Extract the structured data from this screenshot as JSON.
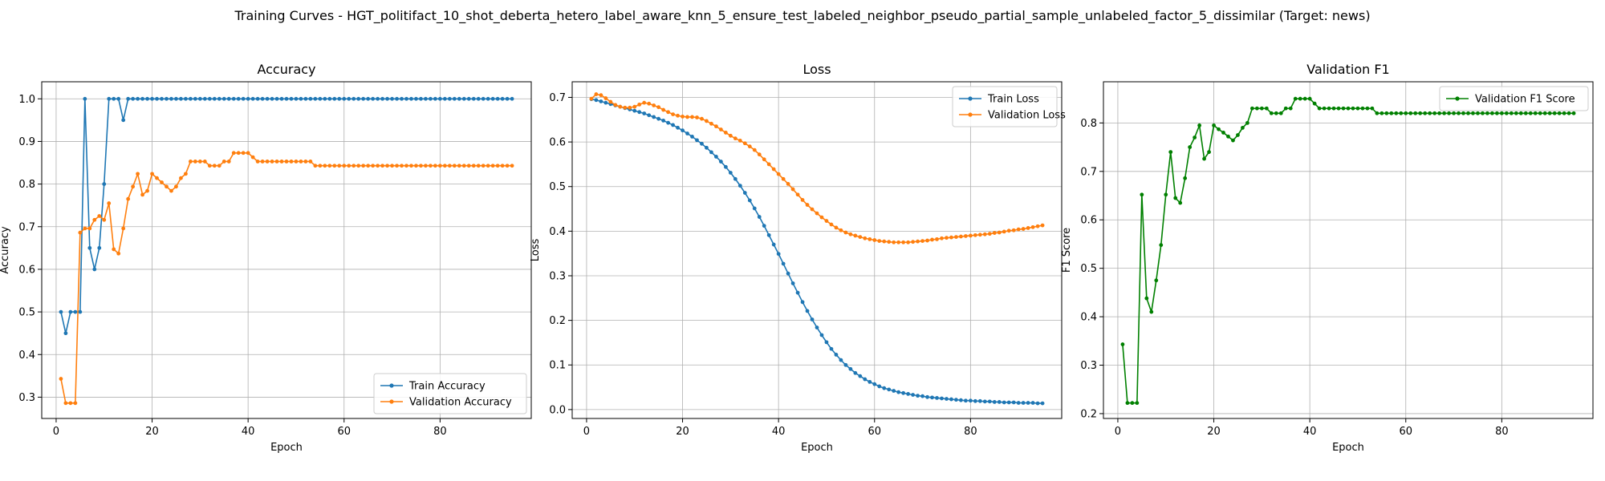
{
  "figure_title": "Training Curves - HGT_politifact_10_shot_deberta_hetero_label_aware_knn_5_ensure_test_labeled_neighbor_pseudo_partial_sample_unlabeled_factor_5_dissimilar (Target: news)",
  "chart_data": [
    {
      "type": "line",
      "title": "Accuracy",
      "xlabel": "Epoch",
      "ylabel": "Accuracy",
      "xlim": [
        -3,
        99
      ],
      "ylim": [
        0.25,
        1.04
      ],
      "xticks": [
        0,
        20,
        40,
        60,
        80
      ],
      "yticks": [
        0.3,
        0.4,
        0.5,
        0.6,
        0.7,
        0.8,
        0.9,
        1.0
      ],
      "ytick_labels": [
        "0.3",
        "0.4",
        "0.5",
        "0.6",
        "0.7",
        "0.8",
        "0.9",
        "1.0"
      ],
      "grid": true,
      "legend_position": "bottom-right",
      "x": [
        1,
        2,
        3,
        4,
        5,
        6,
        7,
        8,
        9,
        10,
        11,
        12,
        13,
        14,
        15,
        16,
        17,
        18,
        19,
        20,
        21,
        22,
        23,
        24,
        25,
        26,
        27,
        28,
        29,
        30,
        31,
        32,
        33,
        34,
        35,
        36,
        37,
        38,
        39,
        40,
        41,
        42,
        43,
        44,
        45,
        46,
        47,
        48,
        49,
        50,
        51,
        52,
        53,
        54,
        55,
        56,
        57,
        58,
        59,
        60,
        61,
        62,
        63,
        64,
        65,
        66,
        67,
        68,
        69,
        70,
        71,
        72,
        73,
        74,
        75,
        76,
        77,
        78,
        79,
        80,
        81,
        82,
        83,
        84,
        85,
        86,
        87,
        88,
        89,
        90,
        91,
        92,
        93,
        94,
        95
      ],
      "series": [
        {
          "name": "Train Accuracy",
          "color": "#1f77b4",
          "values": [
            0.5,
            0.45,
            0.5,
            0.5,
            0.5,
            1.0,
            0.65,
            0.6,
            0.65,
            0.8,
            1.0,
            1.0,
            1.0,
            0.95,
            1.0,
            1.0,
            1.0,
            1.0,
            1.0,
            1.0,
            1.0,
            1.0,
            1.0,
            1.0,
            1.0,
            1.0,
            1.0,
            1.0,
            1.0,
            1.0,
            1.0,
            1.0,
            1.0,
            1.0,
            1.0,
            1.0,
            1.0,
            1.0,
            1.0,
            1.0,
            1.0,
            1.0,
            1.0,
            1.0,
            1.0,
            1.0,
            1.0,
            1.0,
            1.0,
            1.0,
            1.0,
            1.0,
            1.0,
            1.0,
            1.0,
            1.0,
            1.0,
            1.0,
            1.0,
            1.0,
            1.0,
            1.0,
            1.0,
            1.0,
            1.0,
            1.0,
            1.0,
            1.0,
            1.0,
            1.0,
            1.0,
            1.0,
            1.0,
            1.0,
            1.0,
            1.0,
            1.0,
            1.0,
            1.0,
            1.0,
            1.0,
            1.0,
            1.0,
            1.0,
            1.0,
            1.0,
            1.0,
            1.0,
            1.0,
            1.0,
            1.0,
            1.0,
            1.0,
            1.0,
            1.0
          ]
        },
        {
          "name": "Validation Accuracy",
          "color": "#ff7f0e",
          "values": [
            0.343,
            0.286,
            0.286,
            0.286,
            0.686,
            0.696,
            0.696,
            0.716,
            0.725,
            0.716,
            0.755,
            0.647,
            0.637,
            0.696,
            0.765,
            0.794,
            0.824,
            0.775,
            0.784,
            0.824,
            0.814,
            0.804,
            0.794,
            0.784,
            0.794,
            0.814,
            0.824,
            0.853,
            0.853,
            0.853,
            0.853,
            0.843,
            0.843,
            0.843,
            0.853,
            0.853,
            0.873,
            0.873,
            0.873,
            0.873,
            0.863,
            0.853,
            0.853,
            0.853,
            0.853,
            0.853,
            0.853,
            0.853,
            0.853,
            0.853,
            0.853,
            0.853,
            0.853,
            0.843,
            0.843,
            0.843,
            0.843,
            0.843,
            0.843,
            0.843,
            0.843,
            0.843,
            0.843,
            0.843,
            0.843,
            0.843,
            0.843,
            0.843,
            0.843,
            0.843,
            0.843,
            0.843,
            0.843,
            0.843,
            0.843,
            0.843,
            0.843,
            0.843,
            0.843,
            0.843,
            0.843,
            0.843,
            0.843,
            0.843,
            0.843,
            0.843,
            0.843,
            0.843,
            0.843,
            0.843,
            0.843,
            0.843,
            0.843,
            0.843,
            0.843
          ]
        }
      ]
    },
    {
      "type": "line",
      "title": "Loss",
      "xlabel": "Epoch",
      "ylabel": "Loss",
      "xlim": [
        -3,
        99
      ],
      "ylim": [
        -0.02,
        0.735
      ],
      "xticks": [
        0,
        20,
        40,
        60,
        80
      ],
      "yticks": [
        0.0,
        0.1,
        0.2,
        0.3,
        0.4,
        0.5,
        0.6,
        0.7
      ],
      "ytick_labels": [
        "0.0",
        "0.1",
        "0.2",
        "0.3",
        "0.4",
        "0.5",
        "0.6",
        "0.7"
      ],
      "grid": true,
      "legend_position": "top-right",
      "x": [
        1,
        2,
        3,
        4,
        5,
        6,
        7,
        8,
        9,
        10,
        11,
        12,
        13,
        14,
        15,
        16,
        17,
        18,
        19,
        20,
        21,
        22,
        23,
        24,
        25,
        26,
        27,
        28,
        29,
        30,
        31,
        32,
        33,
        34,
        35,
        36,
        37,
        38,
        39,
        40,
        41,
        42,
        43,
        44,
        45,
        46,
        47,
        48,
        49,
        50,
        51,
        52,
        53,
        54,
        55,
        56,
        57,
        58,
        59,
        60,
        61,
        62,
        63,
        64,
        65,
        66,
        67,
        68,
        69,
        70,
        71,
        72,
        73,
        74,
        75,
        76,
        77,
        78,
        79,
        80,
        81,
        82,
        83,
        84,
        85,
        86,
        87,
        88,
        89,
        90,
        91,
        92,
        93,
        94,
        95
      ],
      "series": [
        {
          "name": "Train Loss",
          "color": "#1f77b4",
          "values": [
            0.696,
            0.694,
            0.691,
            0.688,
            0.685,
            0.682,
            0.679,
            0.676,
            0.673,
            0.67,
            0.667,
            0.664,
            0.66,
            0.656,
            0.652,
            0.648,
            0.643,
            0.638,
            0.632,
            0.626,
            0.619,
            0.612,
            0.604,
            0.596,
            0.587,
            0.577,
            0.567,
            0.556,
            0.544,
            0.531,
            0.517,
            0.502,
            0.486,
            0.469,
            0.451,
            0.432,
            0.412,
            0.391,
            0.37,
            0.349,
            0.327,
            0.305,
            0.283,
            0.262,
            0.241,
            0.221,
            0.202,
            0.184,
            0.167,
            0.151,
            0.136,
            0.123,
            0.111,
            0.1,
            0.091,
            0.082,
            0.075,
            0.068,
            0.062,
            0.057,
            0.052,
            0.048,
            0.045,
            0.042,
            0.039,
            0.037,
            0.035,
            0.033,
            0.031,
            0.03,
            0.028,
            0.027,
            0.026,
            0.025,
            0.024,
            0.023,
            0.022,
            0.021,
            0.02,
            0.02,
            0.019,
            0.019,
            0.018,
            0.018,
            0.017,
            0.017,
            0.016,
            0.016,
            0.016,
            0.015,
            0.015,
            0.015,
            0.015,
            0.014,
            0.014
          ]
        },
        {
          "name": "Validation Loss",
          "color": "#ff7f0e",
          "values": [
            0.697,
            0.707,
            0.705,
            0.698,
            0.69,
            0.683,
            0.679,
            0.677,
            0.677,
            0.679,
            0.684,
            0.688,
            0.686,
            0.682,
            0.678,
            0.672,
            0.667,
            0.662,
            0.659,
            0.657,
            0.656,
            0.656,
            0.655,
            0.652,
            0.647,
            0.641,
            0.635,
            0.628,
            0.621,
            0.614,
            0.608,
            0.603,
            0.597,
            0.59,
            0.582,
            0.572,
            0.561,
            0.55,
            0.539,
            0.528,
            0.517,
            0.506,
            0.494,
            0.482,
            0.47,
            0.459,
            0.449,
            0.44,
            0.431,
            0.423,
            0.415,
            0.408,
            0.402,
            0.397,
            0.393,
            0.39,
            0.387,
            0.384,
            0.382,
            0.38,
            0.378,
            0.377,
            0.376,
            0.375,
            0.375,
            0.375,
            0.375,
            0.376,
            0.377,
            0.378,
            0.379,
            0.381,
            0.382,
            0.384,
            0.385,
            0.386,
            0.387,
            0.388,
            0.389,
            0.39,
            0.391,
            0.392,
            0.393,
            0.394,
            0.396,
            0.397,
            0.399,
            0.401,
            0.402,
            0.404,
            0.405,
            0.407,
            0.409,
            0.411,
            0.413
          ]
        }
      ]
    },
    {
      "type": "line",
      "title": "Validation F1",
      "xlabel": "Epoch",
      "ylabel": "F1 Score",
      "xlim": [
        -3,
        99
      ],
      "ylim": [
        0.19,
        0.885
      ],
      "xticks": [
        0,
        20,
        40,
        60,
        80
      ],
      "yticks": [
        0.2,
        0.3,
        0.4,
        0.5,
        0.6,
        0.7,
        0.8
      ],
      "ytick_labels": [
        "0.2",
        "0.3",
        "0.4",
        "0.5",
        "0.6",
        "0.7",
        "0.8"
      ],
      "grid": true,
      "legend_position": "top-right",
      "x": [
        1,
        2,
        3,
        4,
        5,
        6,
        7,
        8,
        9,
        10,
        11,
        12,
        13,
        14,
        15,
        16,
        17,
        18,
        19,
        20,
        21,
        22,
        23,
        24,
        25,
        26,
        27,
        28,
        29,
        30,
        31,
        32,
        33,
        34,
        35,
        36,
        37,
        38,
        39,
        40,
        41,
        42,
        43,
        44,
        45,
        46,
        47,
        48,
        49,
        50,
        51,
        52,
        53,
        54,
        55,
        56,
        57,
        58,
        59,
        60,
        61,
        62,
        63,
        64,
        65,
        66,
        67,
        68,
        69,
        70,
        71,
        72,
        73,
        74,
        75,
        76,
        77,
        78,
        79,
        80,
        81,
        82,
        83,
        84,
        85,
        86,
        87,
        88,
        89,
        90,
        91,
        92,
        93,
        94,
        95
      ],
      "series": [
        {
          "name": "Validation F1 Score",
          "color": "#008000",
          "values": [
            0.343,
            0.222,
            0.222,
            0.222,
            0.652,
            0.438,
            0.41,
            0.475,
            0.548,
            0.652,
            0.74,
            0.645,
            0.635,
            0.686,
            0.75,
            0.77,
            0.795,
            0.726,
            0.74,
            0.795,
            0.787,
            0.78,
            0.772,
            0.764,
            0.775,
            0.79,
            0.8,
            0.83,
            0.83,
            0.83,
            0.83,
            0.82,
            0.82,
            0.82,
            0.83,
            0.83,
            0.85,
            0.85,
            0.85,
            0.85,
            0.84,
            0.83,
            0.83,
            0.83,
            0.83,
            0.83,
            0.83,
            0.83,
            0.83,
            0.83,
            0.83,
            0.83,
            0.83,
            0.82,
            0.82,
            0.82,
            0.82,
            0.82,
            0.82,
            0.82,
            0.82,
            0.82,
            0.82,
            0.82,
            0.82,
            0.82,
            0.82,
            0.82,
            0.82,
            0.82,
            0.82,
            0.82,
            0.82,
            0.82,
            0.82,
            0.82,
            0.82,
            0.82,
            0.82,
            0.82,
            0.82,
            0.82,
            0.82,
            0.82,
            0.82,
            0.82,
            0.82,
            0.82,
            0.82,
            0.82,
            0.82,
            0.82,
            0.82,
            0.82,
            0.82
          ]
        }
      ]
    }
  ]
}
